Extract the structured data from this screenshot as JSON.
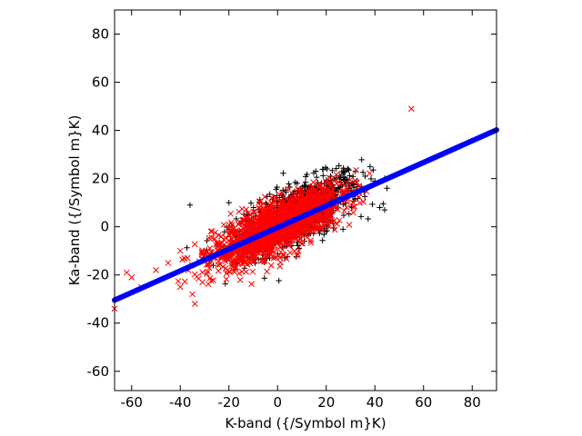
{
  "chart_data": {
    "type": "scatter",
    "title": "",
    "xlabel": "K-band ({/Symbol m}K)",
    "ylabel": "Ka-band ({/Symbol m}K)",
    "xlim": [
      -67,
      90
    ],
    "ylim": [
      -68,
      90
    ],
    "grid": false,
    "legend": "none",
    "x_ticks": [
      -60,
      -40,
      -20,
      0,
      20,
      40,
      60,
      80
    ],
    "y_ticks": [
      -60,
      -40,
      -20,
      0,
      20,
      40,
      60,
      80
    ],
    "x_tick_labels": [
      "-60",
      "-40",
      "-20",
      "0",
      "20",
      "40",
      "60",
      "80"
    ],
    "y_tick_labels": [
      "-60",
      "-40",
      "-20",
      "0",
      "20",
      "40",
      "60",
      "80"
    ],
    "series": [
      {
        "marker": "plus",
        "color": "#000000",
        "distribution": {
          "n": 900,
          "x_center": 8,
          "x_std": 13,
          "slope": 0.46,
          "intercept": 1.5,
          "resid_std": 6.0,
          "x_range": [
            -50,
            48
          ]
        },
        "points": [
          [
            -36,
            9
          ],
          [
            -20,
            10
          ],
          [
            36,
            21
          ],
          [
            40,
            19
          ],
          [
            45,
            16
          ],
          [
            42,
            8
          ],
          [
            38,
            25
          ],
          [
            32,
            23
          ],
          [
            -28,
            -14
          ],
          [
            44,
            7
          ]
        ]
      },
      {
        "marker": "x",
        "color": "#ff0000",
        "distribution": {
          "n": 1800,
          "x_center": 0,
          "x_std": 13,
          "slope": 0.46,
          "intercept": 0,
          "resid_std": 5.0,
          "x_range": [
            -62,
            42
          ]
        },
        "points": [
          [
            55,
            49
          ],
          [
            -67,
            -34
          ],
          [
            -62,
            -19
          ],
          [
            -60,
            -21
          ],
          [
            -56,
            -25
          ],
          [
            -40,
            -25
          ],
          [
            -35,
            -28
          ],
          [
            -34,
            -32
          ],
          [
            -40,
            -10
          ],
          [
            -37,
            -13
          ],
          [
            -50,
            -18
          ],
          [
            -45,
            -15
          ]
        ]
      },
      {
        "marker": "line",
        "color": "#0000ff",
        "slope": 0.45,
        "intercept": -0.3,
        "x_range": [
          -67,
          90
        ]
      }
    ]
  }
}
